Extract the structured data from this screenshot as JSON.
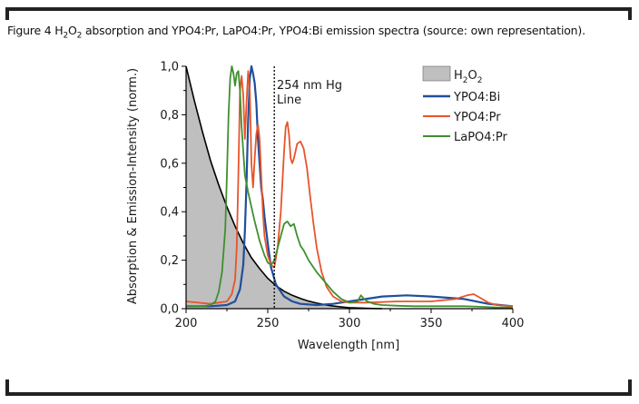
{
  "caption": {
    "prefix": "Figure 4 H",
    "sub1": "2",
    "mid": "O",
    "sub2": "2",
    "suffix": " absorption and YPO4:Pr, LaPO4:Pr, YPO4:Bi emission spectra (source: own representation)."
  },
  "chart_data": {
    "type": "line",
    "xlabel": "Wavelength [nm]",
    "ylabel": "Absorption & Emission-Intensity (norm.)",
    "xlim": [
      200,
      400
    ],
    "ylim": [
      0,
      1.0
    ],
    "x_ticks": [
      "200",
      "250",
      "300",
      "350",
      "400"
    ],
    "y_ticks": [
      "0,0",
      "0,2",
      "0,4",
      "0,6",
      "0,8",
      "1,0"
    ],
    "annotation": {
      "line1": "254 nm Hg",
      "line2": "Line",
      "x": 254
    },
    "legend_position": "top-right",
    "legend": {
      "h2o2": {
        "base": "H",
        "sub1": "2",
        "mid": "O",
        "sub2": "2"
      },
      "bi": "YPO4:Bi",
      "ypr": "YPO4:Pr",
      "lapr": "LaPO4:Pr"
    },
    "colors": {
      "h2o2_fill": "#bfbfbf",
      "h2o2_line": "#000000",
      "bi": "#1f4e9c",
      "ypr": "#e8542a",
      "lapr": "#3f8f2f"
    },
    "series": [
      {
        "key": "h2o2",
        "name": "H2O2",
        "style": "area",
        "x": [
          200,
          205,
          210,
          215,
          220,
          225,
          230,
          235,
          240,
          245,
          250,
          255,
          260,
          265,
          270,
          275,
          280,
          285,
          290,
          295,
          300,
          310,
          320
        ],
        "y": [
          1.0,
          0.86,
          0.73,
          0.61,
          0.51,
          0.42,
          0.34,
          0.27,
          0.21,
          0.165,
          0.125,
          0.095,
          0.072,
          0.055,
          0.042,
          0.031,
          0.023,
          0.016,
          0.011,
          0.007,
          0.004,
          0.0015,
          0.0
        ]
      },
      {
        "key": "bi",
        "name": "YPO4:Bi",
        "x": [
          200,
          215,
          225,
          230,
          233,
          235,
          236,
          237,
          238,
          239,
          240,
          241,
          242,
          243,
          244,
          245,
          246,
          247,
          248,
          250,
          252,
          255,
          260,
          265,
          270,
          280,
          290,
          300,
          320,
          335,
          350,
          370,
          385,
          400
        ],
        "y": [
          0.01,
          0.01,
          0.015,
          0.03,
          0.08,
          0.18,
          0.32,
          0.52,
          0.78,
          0.95,
          1.0,
          0.97,
          0.93,
          0.85,
          0.7,
          0.6,
          0.5,
          0.45,
          0.38,
          0.27,
          0.17,
          0.1,
          0.05,
          0.03,
          0.02,
          0.015,
          0.02,
          0.03,
          0.05,
          0.055,
          0.05,
          0.04,
          0.02,
          0.01
        ]
      },
      {
        "key": "ypr",
        "name": "YPO4:Pr",
        "x": [
          200,
          215,
          225,
          228,
          230,
          231,
          232,
          233,
          234,
          235,
          236,
          237,
          238,
          239,
          240,
          241,
          242,
          243,
          244,
          245,
          246,
          247,
          248,
          250,
          252,
          254,
          256,
          258,
          260,
          261,
          262,
          263,
          264,
          265,
          266,
          268,
          270,
          272,
          274,
          276,
          278,
          280,
          283,
          286,
          290,
          295,
          300,
          310,
          330,
          350,
          365,
          372,
          376,
          380,
          385,
          390,
          400
        ],
        "y": [
          0.03,
          0.02,
          0.03,
          0.06,
          0.12,
          0.25,
          0.55,
          0.9,
          0.96,
          0.88,
          0.7,
          0.85,
          0.98,
          0.9,
          0.6,
          0.5,
          0.62,
          0.72,
          0.76,
          0.7,
          0.55,
          0.4,
          0.3,
          0.22,
          0.18,
          0.17,
          0.25,
          0.4,
          0.65,
          0.75,
          0.77,
          0.72,
          0.62,
          0.6,
          0.62,
          0.68,
          0.69,
          0.66,
          0.58,
          0.46,
          0.35,
          0.25,
          0.15,
          0.09,
          0.05,
          0.03,
          0.025,
          0.025,
          0.03,
          0.03,
          0.04,
          0.055,
          0.06,
          0.045,
          0.025,
          0.015,
          0.01
        ]
      },
      {
        "key": "lapr",
        "name": "LaPO4:Pr",
        "x": [
          200,
          210,
          215,
          218,
          220,
          222,
          224,
          225,
          226,
          227,
          228,
          229,
          230,
          231,
          232,
          233,
          234,
          236,
          238,
          240,
          242,
          245,
          248,
          250,
          252,
          254,
          256,
          258,
          260,
          262,
          264,
          266,
          268,
          270,
          272,
          275,
          278,
          280,
          285,
          290,
          295,
          300,
          305,
          307,
          309,
          311,
          315,
          320,
          330,
          340,
          350,
          360,
          370,
          380,
          390,
          400
        ],
        "y": [
          0.01,
          0.01,
          0.015,
          0.03,
          0.07,
          0.15,
          0.33,
          0.55,
          0.8,
          0.95,
          1.0,
          0.97,
          0.92,
          0.97,
          0.98,
          0.9,
          0.75,
          0.55,
          0.48,
          0.42,
          0.36,
          0.28,
          0.22,
          0.19,
          0.18,
          0.2,
          0.25,
          0.3,
          0.35,
          0.36,
          0.34,
          0.35,
          0.3,
          0.26,
          0.24,
          0.2,
          0.17,
          0.15,
          0.11,
          0.07,
          0.04,
          0.025,
          0.03,
          0.055,
          0.04,
          0.03,
          0.02,
          0.015,
          0.012,
          0.01,
          0.01,
          0.01,
          0.01,
          0.008,
          0.005,
          0.005
        ]
      }
    ]
  }
}
